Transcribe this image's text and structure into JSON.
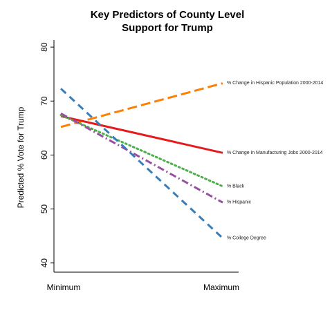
{
  "chart_data": {
    "type": "line",
    "title": [
      "Key Predictors of County Level",
      "Support for Trump"
    ],
    "xlabel": "",
    "ylabel": "Predicted % Vote for Trump",
    "x_ticks": [
      "Minimum",
      "Maximum"
    ],
    "y_ticks": [
      40,
      50,
      60,
      70,
      80
    ],
    "ylim": [
      38.3,
      81.3
    ],
    "grid": false,
    "legend": "direct labels at right end of each line",
    "series": [
      {
        "name": "% Change in Hispanic Population 2000-2014",
        "values": [
          65.2,
          73.3
        ],
        "color": "#ff7f00",
        "dash": "long-dash"
      },
      {
        "name": "% Change in Manufacturing Jobs 2000-2014",
        "values": [
          67.2,
          60.4
        ],
        "color": "#e41a1c",
        "dash": "solid"
      },
      {
        "name": "% Black",
        "values": [
          67.4,
          54.2
        ],
        "color": "#4daf4a",
        "dash": "dotted"
      },
      {
        "name": "% Hispanic",
        "values": [
          67.7,
          51.2
        ],
        "color": "#984ea3",
        "dash": "dash-dot"
      },
      {
        "name": "% College Degree",
        "values": [
          72.3,
          44.6
        ],
        "color": "#377eb8",
        "dash": "dashed"
      }
    ]
  }
}
